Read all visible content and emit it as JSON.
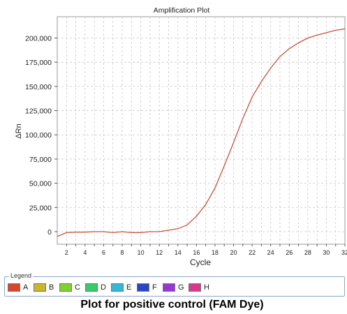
{
  "chart_data": {
    "type": "line",
    "title": "Amplification Plot",
    "xlabel": "Cycle",
    "ylabel": "ΔRn",
    "xlim": [
      1,
      32
    ],
    "ylim": [
      -13000,
      222000
    ],
    "xticks": [
      2,
      4,
      6,
      8,
      10,
      12,
      14,
      16,
      18,
      20,
      22,
      24,
      26,
      28,
      30,
      32
    ],
    "yticks": [
      0,
      25000,
      50000,
      75000,
      100000,
      125000,
      150000,
      175000,
      200000
    ],
    "ytick_labels": [
      "0",
      "25,000",
      "50,000",
      "75,000",
      "100,000",
      "125,000",
      "150,000",
      "175,000",
      "200,000"
    ],
    "grid": true,
    "series": [
      {
        "name": "A",
        "color": "#c8523a",
        "x": [
          1,
          2,
          3,
          4,
          5,
          6,
          7,
          8,
          9,
          10,
          11,
          12,
          13,
          14,
          15,
          16,
          17,
          18,
          19,
          20,
          21,
          22,
          23,
          24,
          25,
          26,
          27,
          28,
          29,
          30,
          31,
          32
        ],
        "y": [
          -5000,
          -1000,
          -500,
          -500,
          0,
          0,
          -1000,
          0,
          -1000,
          -1000,
          0,
          0,
          1500,
          3000,
          7000,
          16000,
          28000,
          45000,
          68000,
          92000,
          117000,
          139000,
          155000,
          169000,
          181000,
          189000,
          195000,
          200000,
          203000,
          205500,
          208000,
          209500
        ]
      }
    ]
  },
  "legend": {
    "title": "Legend",
    "items": [
      {
        "label": "A",
        "color": "#d9452b"
      },
      {
        "label": "B",
        "color": "#c8b62b"
      },
      {
        "label": "C",
        "color": "#7fd12f"
      },
      {
        "label": "D",
        "color": "#33cc66"
      },
      {
        "label": "E",
        "color": "#33b8d6"
      },
      {
        "label": "F",
        "color": "#2a46c8"
      },
      {
        "label": "G",
        "color": "#9a34d4"
      },
      {
        "label": "H",
        "color": "#d63a8c"
      }
    ]
  },
  "caption": "Plot for positive control (FAM Dye)"
}
